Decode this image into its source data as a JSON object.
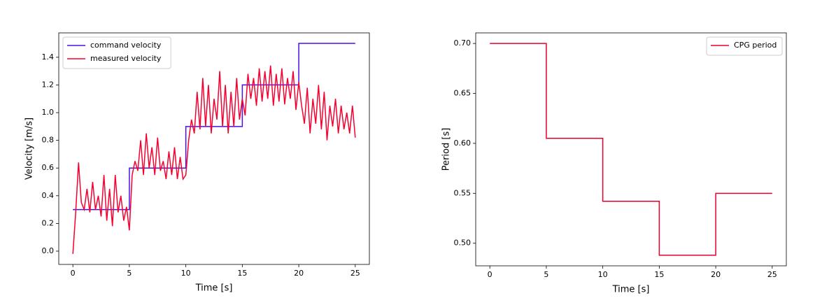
{
  "chart_data": [
    {
      "type": "line",
      "ylabel": "Velocity [m/s]",
      "xlabel": "Time [s]",
      "legend": "upper left",
      "xlim": [
        -1.25,
        26.25
      ],
      "xticks": [
        0,
        5,
        10,
        15,
        20,
        25
      ],
      "ylim": [
        -0.096,
        1.576
      ],
      "yticks": [
        {
          "value": 0,
          "label": "0.0"
        },
        0.2,
        0.4,
        0.6,
        0.8,
        {
          "value": 1,
          "label": "1.0"
        },
        1.2,
        1.4
      ],
      "series": [
        {
          "name": "command velocity",
          "color": "#4a10e6",
          "x": [
            0,
            5,
            5,
            10,
            10,
            15,
            15,
            20,
            20,
            25
          ],
          "values": [
            0.3,
            0.3,
            0.6,
            0.6,
            0.9,
            0.9,
            1.2,
            1.2,
            1.5,
            1.5
          ]
        },
        {
          "name": "measured velocity",
          "color": "#f5002f",
          "x": [
            0,
            0.25,
            0.5,
            0.75,
            1,
            1.25,
            1.5,
            1.75,
            2,
            2.25,
            2.5,
            2.75,
            3,
            3.25,
            3.5,
            3.75,
            4,
            4.25,
            4.5,
            4.75,
            5,
            5.25,
            5.5,
            5.75,
            6,
            6.25,
            6.5,
            6.75,
            7,
            7.25,
            7.5,
            7.75,
            8,
            8.25,
            8.5,
            8.75,
            9,
            9.25,
            9.5,
            9.75,
            10,
            10.25,
            10.5,
            10.75,
            11,
            11.25,
            11.5,
            11.75,
            12,
            12.25,
            12.5,
            12.75,
            13,
            13.25,
            13.5,
            13.75,
            14,
            14.25,
            14.5,
            14.75,
            15,
            15.25,
            15.5,
            15.75,
            16,
            16.25,
            16.5,
            16.75,
            17,
            17.25,
            17.5,
            17.75,
            18,
            18.25,
            18.5,
            18.75,
            19,
            19.25,
            19.5,
            19.75,
            20,
            20.25,
            20.5,
            20.75,
            21,
            21.25,
            21.5,
            21.75,
            22,
            22.25,
            22.5,
            22.75,
            23,
            23.25,
            23.5,
            23.75,
            24,
            24.25,
            24.5,
            24.75,
            25
          ],
          "values": [
            -0.02,
            0.28,
            0.64,
            0.35,
            0.3,
            0.45,
            0.28,
            0.5,
            0.3,
            0.4,
            0.25,
            0.55,
            0.22,
            0.45,
            0.18,
            0.55,
            0.28,
            0.4,
            0.22,
            0.32,
            0.15,
            0.55,
            0.65,
            0.58,
            0.8,
            0.55,
            0.85,
            0.6,
            0.75,
            0.55,
            0.82,
            0.58,
            0.65,
            0.52,
            0.72,
            0.55,
            0.75,
            0.52,
            0.68,
            0.52,
            0.55,
            0.8,
            0.95,
            0.85,
            1.15,
            0.88,
            1.25,
            0.9,
            1.2,
            0.85,
            1.1,
            0.95,
            1.3,
            0.9,
            1.2,
            0.85,
            1.15,
            0.9,
            1.25,
            0.95,
            1.1,
            0.98,
            1.28,
            1.1,
            1.25,
            1.05,
            1.32,
            1.08,
            1.3,
            1.1,
            1.34,
            1.05,
            1.28,
            1.08,
            1.32,
            1.06,
            1.25,
            1.1,
            1.3,
            1.02,
            1.22,
            1.05,
            0.92,
            1.18,
            0.85,
            1.1,
            0.92,
            1.2,
            0.88,
            1.15,
            0.8,
            1.05,
            0.9,
            1.1,
            0.85,
            1.05,
            0.88,
            1,
            0.85,
            1.05,
            0.82
          ]
        }
      ]
    },
    {
      "type": "line",
      "ylabel": "Period [s]",
      "xlabel": "Time [s]",
      "legend": "upper right",
      "xlim": [
        -1.25,
        26.25
      ],
      "xticks": [
        0,
        5,
        10,
        15,
        20,
        25
      ],
      "ylim": [
        0.4774,
        0.7106
      ],
      "yticks": [
        {
          "value": 0.5,
          "label": "0.50"
        },
        0.55,
        {
          "value": 0.6,
          "label": "0.60"
        },
        0.65,
        {
          "value": 0.7,
          "label": "0.70"
        }
      ],
      "series": [
        {
          "name": "CPG period",
          "color": "#e8002d",
          "x": [
            0,
            5,
            5,
            10,
            10,
            15,
            15,
            20,
            20,
            25
          ],
          "values": [
            0.7,
            0.7,
            0.605,
            0.605,
            0.542,
            0.542,
            0.488,
            0.488,
            0.55,
            0.55
          ]
        }
      ]
    }
  ]
}
